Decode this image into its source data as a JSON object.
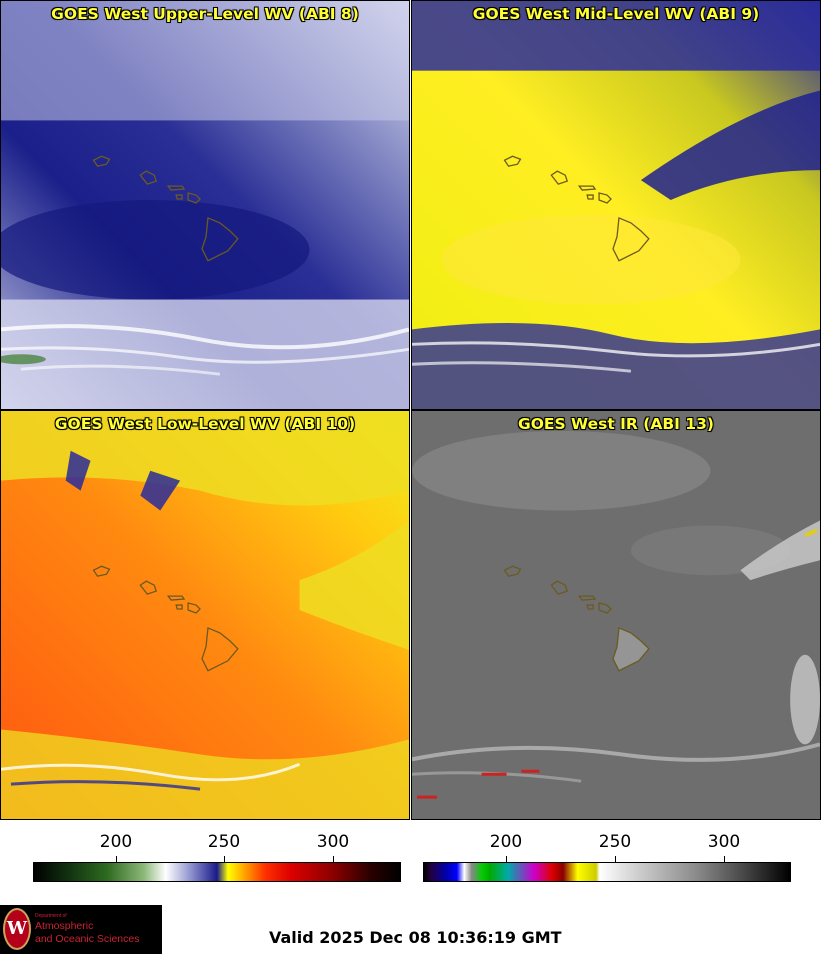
{
  "panels": [
    {
      "title": "GOES West Upper-Level WV (ABI 8)"
    },
    {
      "title": "GOES West Mid-Level WV (ABI 9)"
    },
    {
      "title": "GOES West Low-Level WV (ABI 10)"
    },
    {
      "title": "GOES West IR (ABI 13)"
    }
  ],
  "colorbars": {
    "wv": {
      "ticks": [
        "200",
        "250",
        "300"
      ]
    },
    "ir": {
      "ticks": [
        "200",
        "250",
        "300"
      ]
    }
  },
  "logo": {
    "line1": "Department of",
    "line2": "Atmospheric",
    "line3": "and Oceanic Sciences",
    "seal": "W"
  },
  "valid": "Valid 2025 Dec 08 10:36:19 GMT",
  "colors": {
    "title": "#ffff33",
    "coastline": "#6b5a20"
  }
}
